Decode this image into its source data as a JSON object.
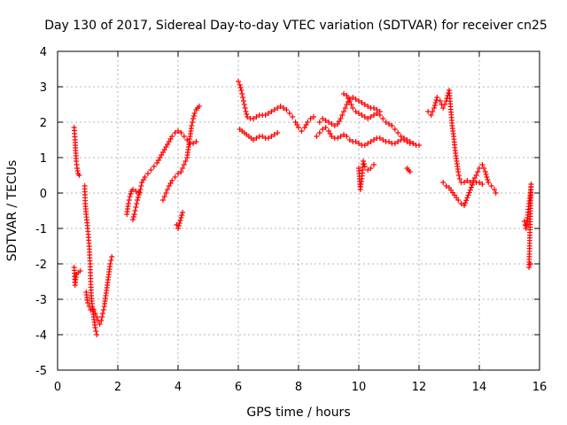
{
  "chart_data": {
    "type": "scatter",
    "title": "Day 130 of 2017, Sidereal Day-to-day VTEC variation (SDTVAR) for receiver cn25",
    "xlabel": "GPS time / hours",
    "ylabel": "SDTVAR / TECUs",
    "xlim": [
      0,
      16
    ],
    "ylim": [
      -5,
      4
    ],
    "xticks": [
      "0",
      "2",
      "4",
      "6",
      "8",
      "10",
      "12",
      "14",
      "16"
    ],
    "yticks": [
      "4",
      "3",
      "2",
      "1",
      "0",
      "-1",
      "-2",
      "-3",
      "-4",
      "-5"
    ],
    "grid": true,
    "marker": "plus",
    "color": "#ff0000",
    "series_points": [
      [
        [
          0.55,
          1.85
        ],
        [
          0.58,
          1.5
        ],
        [
          0.6,
          1.2
        ],
        [
          0.62,
          0.9
        ],
        [
          0.65,
          0.7
        ],
        [
          0.68,
          0.55
        ],
        [
          0.72,
          0.5
        ]
      ],
      [
        [
          0.55,
          -2.1
        ],
        [
          0.58,
          -2.6
        ],
        [
          0.62,
          -2.3
        ],
        [
          0.68,
          -2.25
        ],
        [
          0.75,
          -2.2
        ]
      ],
      [
        [
          0.9,
          0.2
        ],
        [
          0.92,
          -0.3
        ],
        [
          0.95,
          -0.6
        ],
        [
          1.0,
          -1.0
        ],
        [
          1.05,
          -1.5
        ],
        [
          1.08,
          -2.0
        ],
        [
          1.1,
          -2.5
        ],
        [
          1.12,
          -2.9
        ],
        [
          1.15,
          -3.2
        ],
        [
          1.2,
          -3.5
        ],
        [
          1.25,
          -3.8
        ],
        [
          1.3,
          -4.0
        ]
      ],
      [
        [
          0.95,
          -2.8
        ],
        [
          1.0,
          -3.1
        ],
        [
          1.05,
          -3.2
        ],
        [
          1.1,
          -3.3
        ],
        [
          1.2,
          -3.3
        ],
        [
          1.3,
          -3.5
        ],
        [
          1.4,
          -3.7
        ],
        [
          1.45,
          -3.6
        ],
        [
          1.5,
          -3.4
        ],
        [
          1.55,
          -3.2
        ],
        [
          1.6,
          -2.9
        ],
        [
          1.65,
          -2.6
        ],
        [
          1.7,
          -2.3
        ],
        [
          1.75,
          -2.0
        ],
        [
          1.8,
          -1.8
        ]
      ],
      [
        [
          2.3,
          -0.6
        ],
        [
          2.35,
          -0.3
        ],
        [
          2.4,
          -0.1
        ],
        [
          2.45,
          0.05
        ],
        [
          2.5,
          0.1
        ],
        [
          2.6,
          0.05
        ],
        [
          2.7,
          0.0
        ]
      ],
      [
        [
          2.5,
          -0.75
        ],
        [
          2.55,
          -0.6
        ],
        [
          2.6,
          -0.4
        ],
        [
          2.65,
          -0.2
        ],
        [
          2.7,
          -0.05
        ],
        [
          2.75,
          0.1
        ],
        [
          2.8,
          0.3
        ],
        [
          2.9,
          0.45
        ],
        [
          3.0,
          0.55
        ],
        [
          3.1,
          0.65
        ],
        [
          3.2,
          0.75
        ],
        [
          3.3,
          0.85
        ],
        [
          3.4,
          1.0
        ],
        [
          3.5,
          1.15
        ],
        [
          3.6,
          1.3
        ],
        [
          3.7,
          1.45
        ],
        [
          3.8,
          1.6
        ],
        [
          3.9,
          1.7
        ],
        [
          4.0,
          1.75
        ],
        [
          4.1,
          1.7
        ],
        [
          4.2,
          1.6
        ],
        [
          4.3,
          1.5
        ],
        [
          4.4,
          1.4
        ],
        [
          4.5,
          1.4
        ],
        [
          4.6,
          1.45
        ]
      ],
      [
        [
          3.5,
          -0.2
        ],
        [
          3.6,
          0.0
        ],
        [
          3.7,
          0.2
        ],
        [
          3.8,
          0.35
        ],
        [
          3.9,
          0.45
        ],
        [
          4.0,
          0.55
        ],
        [
          4.1,
          0.6
        ],
        [
          4.2,
          0.8
        ],
        [
          4.3,
          1.0
        ],
        [
          4.35,
          1.3
        ],
        [
          4.4,
          1.6
        ],
        [
          4.45,
          1.9
        ],
        [
          4.5,
          2.1
        ],
        [
          4.55,
          2.25
        ],
        [
          4.6,
          2.35
        ],
        [
          4.65,
          2.4
        ],
        [
          4.7,
          2.45
        ]
      ],
      [
        [
          3.95,
          -0.9
        ],
        [
          4.0,
          -1.0
        ],
        [
          4.05,
          -0.85
        ],
        [
          4.1,
          -0.7
        ],
        [
          4.15,
          -0.55
        ]
      ],
      [
        [
          6.0,
          3.15
        ],
        [
          6.05,
          3.05
        ],
        [
          6.1,
          2.9
        ],
        [
          6.15,
          2.7
        ],
        [
          6.2,
          2.5
        ],
        [
          6.25,
          2.3
        ],
        [
          6.3,
          2.15
        ],
        [
          6.4,
          2.1
        ],
        [
          6.5,
          2.1
        ],
        [
          6.6,
          2.15
        ],
        [
          6.7,
          2.2
        ],
        [
          6.8,
          2.2
        ],
        [
          6.9,
          2.2
        ],
        [
          7.0,
          2.25
        ],
        [
          7.1,
          2.3
        ],
        [
          7.2,
          2.35
        ],
        [
          7.3,
          2.4
        ],
        [
          7.4,
          2.45
        ],
        [
          7.5,
          2.4
        ],
        [
          7.6,
          2.35
        ],
        [
          7.7,
          2.25
        ],
        [
          7.8,
          2.15
        ]
      ],
      [
        [
          6.05,
          1.8
        ],
        [
          6.5,
          1.5
        ],
        [
          6.6,
          1.55
        ],
        [
          6.7,
          1.6
        ],
        [
          6.8,
          1.6
        ],
        [
          6.9,
          1.55
        ],
        [
          7.0,
          1.55
        ],
        [
          7.1,
          1.6
        ],
        [
          7.2,
          1.65
        ],
        [
          7.3,
          1.7
        ]
      ],
      [
        [
          7.9,
          2.0
        ],
        [
          8.0,
          1.85
        ],
        [
          8.1,
          1.75
        ],
        [
          8.2,
          1.85
        ],
        [
          8.3,
          2.0
        ],
        [
          8.4,
          2.1
        ],
        [
          8.5,
          2.15
        ]
      ],
      [
        [
          8.6,
          1.6
        ],
        [
          8.7,
          1.7
        ],
        [
          8.8,
          1.8
        ],
        [
          8.9,
          1.85
        ],
        [
          9.0,
          1.75
        ],
        [
          9.1,
          1.6
        ],
        [
          9.2,
          1.55
        ],
        [
          9.3,
          1.55
        ],
        [
          9.4,
          1.6
        ],
        [
          9.5,
          1.65
        ],
        [
          9.6,
          1.6
        ],
        [
          9.7,
          1.5
        ],
        [
          9.8,
          1.45
        ],
        [
          9.9,
          1.45
        ],
        [
          10.0,
          1.4
        ],
        [
          10.1,
          1.35
        ],
        [
          10.2,
          1.35
        ],
        [
          10.3,
          1.4
        ],
        [
          10.4,
          1.45
        ],
        [
          10.5,
          1.5
        ],
        [
          10.6,
          1.55
        ],
        [
          10.7,
          1.55
        ],
        [
          10.8,
          1.5
        ],
        [
          10.9,
          1.45
        ],
        [
          11.0,
          1.45
        ],
        [
          11.1,
          1.4
        ],
        [
          11.2,
          1.4
        ],
        [
          11.3,
          1.45
        ],
        [
          11.4,
          1.5
        ],
        [
          11.5,
          1.5
        ],
        [
          11.6,
          1.45
        ],
        [
          11.7,
          1.4
        ],
        [
          11.8,
          1.4
        ],
        [
          11.9,
          1.35
        ],
        [
          12.0,
          1.35
        ]
      ],
      [
        [
          8.7,
          2.0
        ],
        [
          8.8,
          2.1
        ],
        [
          8.9,
          2.05
        ],
        [
          9.0,
          2.0
        ],
        [
          9.1,
          1.95
        ],
        [
          9.2,
          1.9
        ],
        [
          9.3,
          1.95
        ],
        [
          9.4,
          2.1
        ],
        [
          9.5,
          2.3
        ],
        [
          9.6,
          2.5
        ],
        [
          9.7,
          2.65
        ],
        [
          9.8,
          2.7
        ],
        [
          9.9,
          2.65
        ],
        [
          10.0,
          2.6
        ],
        [
          10.1,
          2.55
        ],
        [
          10.2,
          2.5
        ],
        [
          10.3,
          2.45
        ],
        [
          10.4,
          2.4
        ],
        [
          10.5,
          2.4
        ],
        [
          10.6,
          2.35
        ],
        [
          10.7,
          2.3
        ]
      ],
      [
        [
          9.5,
          2.8
        ],
        [
          9.6,
          2.75
        ],
        [
          9.7,
          2.6
        ],
        [
          9.8,
          2.4
        ],
        [
          9.9,
          2.3
        ],
        [
          10.0,
          2.25
        ],
        [
          10.1,
          2.2
        ],
        [
          10.2,
          2.15
        ],
        [
          10.3,
          2.1
        ],
        [
          10.4,
          2.15
        ],
        [
          10.5,
          2.2
        ],
        [
          10.6,
          2.25
        ],
        [
          10.7,
          2.2
        ],
        [
          10.8,
          2.1
        ],
        [
          10.9,
          2.0
        ],
        [
          11.0,
          1.95
        ],
        [
          11.1,
          1.9
        ],
        [
          11.2,
          1.8
        ],
        [
          11.3,
          1.7
        ],
        [
          11.4,
          1.6
        ],
        [
          11.5,
          1.55
        ],
        [
          11.6,
          1.5
        ],
        [
          11.7,
          1.45
        ],
        [
          11.8,
          1.4
        ]
      ],
      [
        [
          10.0,
          0.7
        ],
        [
          10.05,
          0.1
        ],
        [
          10.1,
          0.4
        ],
        [
          10.15,
          0.9
        ],
        [
          10.2,
          0.75
        ],
        [
          10.3,
          0.65
        ],
        [
          10.4,
          0.7
        ],
        [
          10.5,
          0.8
        ]
      ],
      [
        [
          11.6,
          0.7
        ],
        [
          11.65,
          0.65
        ],
        [
          11.7,
          0.6
        ]
      ],
      [
        [
          12.3,
          2.3
        ],
        [
          12.4,
          2.2
        ],
        [
          12.5,
          2.4
        ],
        [
          12.6,
          2.7
        ],
        [
          12.7,
          2.6
        ],
        [
          12.8,
          2.4
        ],
        [
          12.9,
          2.6
        ],
        [
          13.0,
          2.9
        ],
        [
          13.1,
          1.9
        ],
        [
          13.15,
          1.6
        ],
        [
          13.2,
          1.2
        ],
        [
          13.25,
          0.9
        ],
        [
          13.3,
          0.6
        ],
        [
          13.35,
          0.4
        ],
        [
          13.4,
          0.3
        ],
        [
          13.5,
          0.3
        ],
        [
          13.6,
          0.35
        ],
        [
          13.7,
          0.3
        ],
        [
          13.8,
          0.35
        ],
        [
          13.9,
          0.5
        ],
        [
          14.0,
          0.7
        ],
        [
          14.1,
          0.8
        ],
        [
          14.2,
          0.6
        ],
        [
          14.3,
          0.3
        ],
        [
          14.4,
          0.2
        ],
        [
          14.5,
          0.1
        ],
        [
          14.55,
          0.0
        ]
      ],
      [
        [
          12.8,
          0.3
        ],
        [
          12.9,
          0.2
        ],
        [
          13.0,
          0.15
        ],
        [
          13.3,
          -0.2
        ],
        [
          13.4,
          -0.3
        ],
        [
          13.5,
          -0.35
        ],
        [
          13.8,
          0.3
        ],
        [
          13.9,
          0.3
        ],
        [
          14.0,
          0.3
        ],
        [
          14.1,
          0.25
        ]
      ],
      [
        [
          15.5,
          -0.8
        ],
        [
          15.55,
          -1.0
        ],
        [
          15.6,
          -0.7
        ],
        [
          15.65,
          -0.3
        ],
        [
          15.7,
          0.0
        ],
        [
          15.72,
          0.25
        ],
        [
          15.65,
          -2.1
        ],
        [
          15.7,
          -2.0
        ]
      ]
    ]
  }
}
